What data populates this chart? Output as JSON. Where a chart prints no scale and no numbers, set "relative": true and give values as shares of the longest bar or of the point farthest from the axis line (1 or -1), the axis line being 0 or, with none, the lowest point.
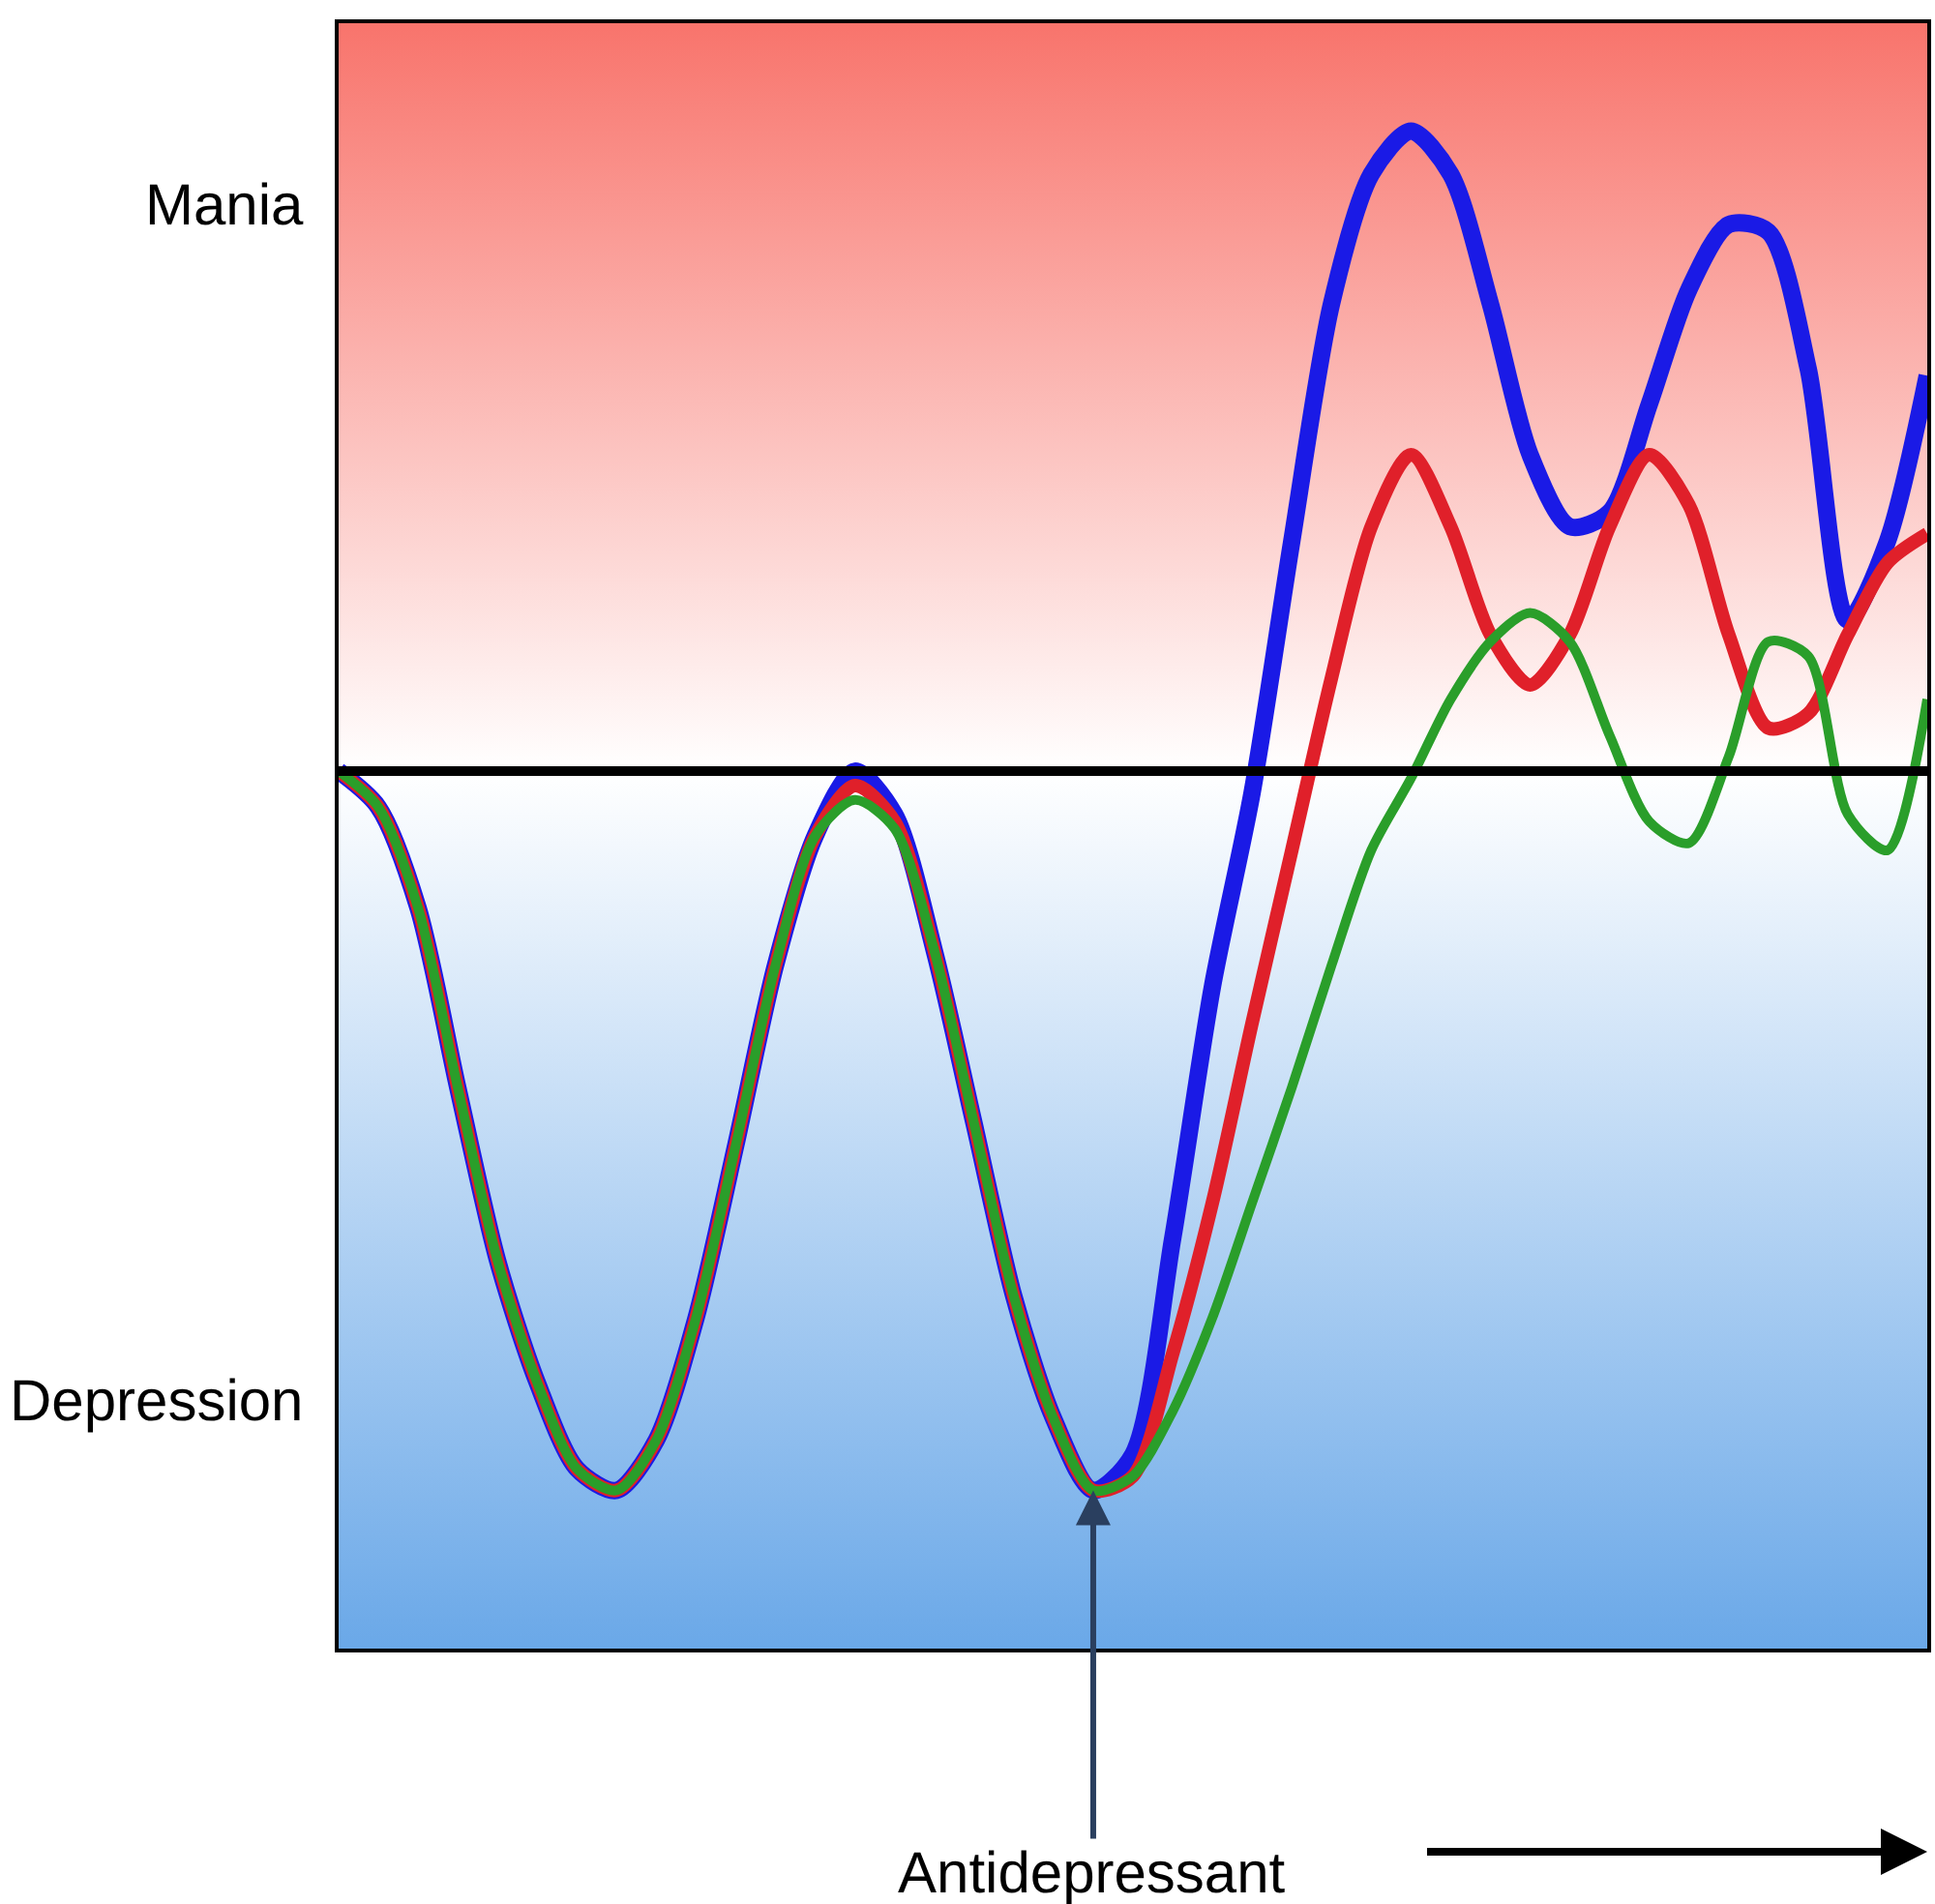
{
  "chart_data": {
    "type": "line",
    "relative": true,
    "categories": [
      null,
      null,
      null,
      null,
      null,
      null,
      null,
      null,
      null,
      null,
      null,
      null,
      null,
      null,
      null,
      null,
      null,
      null,
      null,
      null,
      null,
      null,
      null,
      null,
      null,
      null,
      null,
      null,
      null,
      null,
      null,
      null,
      null,
      null,
      null,
      null,
      null,
      null,
      null,
      null,
      null
    ],
    "series": [
      {
        "color": "#1a1ae6",
        "values": [
          0,
          -0.05,
          -0.19,
          -0.44,
          -0.68,
          -0.85,
          -0.97,
          -1,
          -0.93,
          -0.76,
          -0.52,
          -0.27,
          -0.09,
          0.0,
          -0.06,
          -0.25,
          -0.49,
          -0.73,
          -0.9,
          -1,
          -0.95,
          -0.65,
          -0.3,
          -0.03,
          0.32,
          0.65,
          0.83,
          0.89,
          0.83,
          0.65,
          0.44,
          0.34,
          0.36,
          0.51,
          0.67,
          0.76,
          0.75,
          0.56,
          0.21,
          0.32,
          0.55
        ]
      },
      {
        "color": "#e0202a",
        "values": [
          0,
          -0.05,
          -0.19,
          -0.44,
          -0.68,
          -0.85,
          -0.97,
          -1,
          -0.93,
          -0.76,
          -0.52,
          -0.27,
          -0.09,
          -0.02,
          -0.07,
          -0.25,
          -0.49,
          -0.73,
          -0.9,
          -1,
          -0.98,
          -0.81,
          -0.6,
          -0.35,
          -0.11,
          0.13,
          0.34,
          0.44,
          0.34,
          0.19,
          0.12,
          0.19,
          0.34,
          0.44,
          0.37,
          0.19,
          0.06,
          0.08,
          0.19,
          0.29,
          0.33
        ]
      },
      {
        "color": "#2a9e2a",
        "values": [
          0,
          -0.05,
          -0.19,
          -0.44,
          -0.68,
          -0.85,
          -0.97,
          -1,
          -0.93,
          -0.76,
          -0.52,
          -0.27,
          -0.09,
          -0.04,
          -0.08,
          -0.25,
          -0.49,
          -0.73,
          -0.9,
          -1,
          -0.98,
          -0.89,
          -0.76,
          -0.6,
          -0.44,
          -0.27,
          -0.11,
          -0.01,
          0.1,
          0.18,
          0.22,
          0.18,
          0.05,
          -0.07,
          -0.1,
          0.02,
          0.18,
          0.16,
          -0.06,
          -0.11,
          0.1
        ]
      }
    ],
    "bands": [
      {
        "axis": "y",
        "from": 0,
        "to": 1.04,
        "color": "#f8746c"
      },
      {
        "axis": "y",
        "from": -1.22,
        "to": 0,
        "color": "#6aa8e8"
      }
    ],
    "annotations": [
      "Mania",
      "Depression",
      "Antidepressant"
    ],
    "legend": false,
    "marker": "none",
    "line_style": "solid"
  }
}
